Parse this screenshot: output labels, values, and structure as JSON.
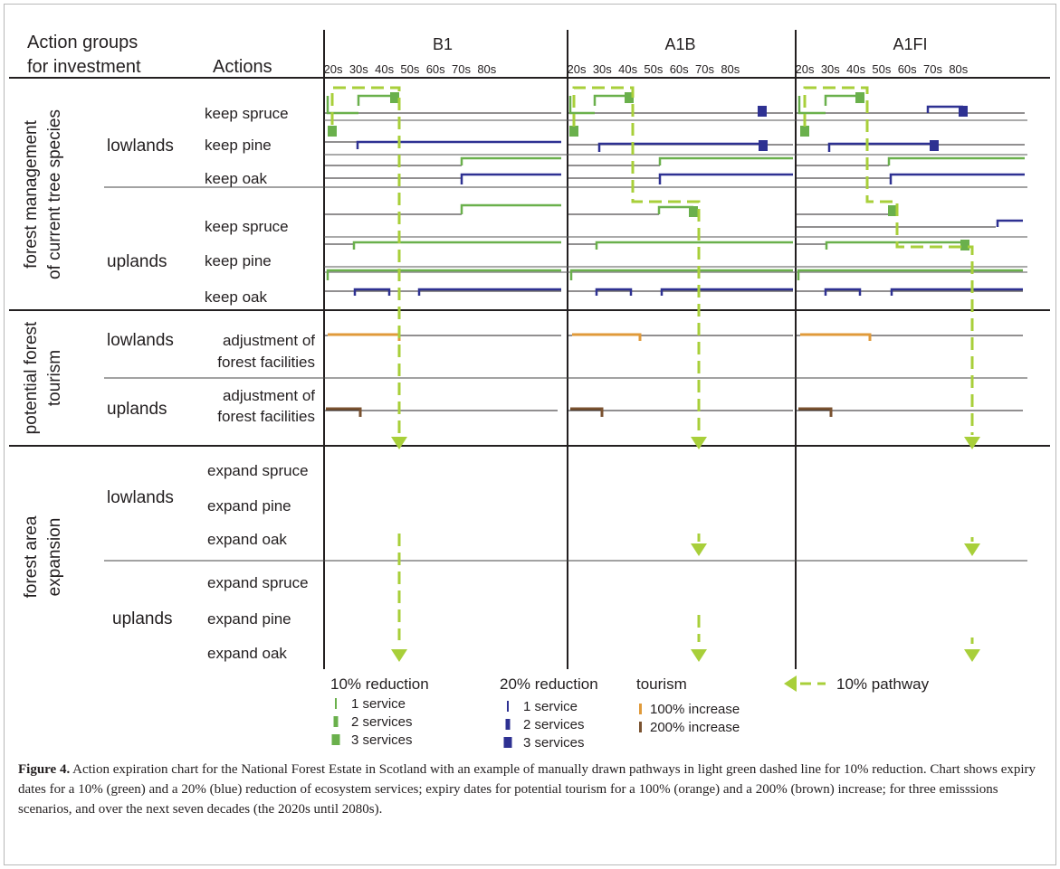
{
  "headers": {
    "action_groups": "Action groups",
    "for_investment": "for investment",
    "actions": "Actions"
  },
  "scenarios": [
    "B1",
    "A1B",
    "A1FI"
  ],
  "decades": [
    "20s",
    "30s",
    "40s",
    "50s",
    "60s",
    "70s",
    "80s"
  ],
  "groups": {
    "fm": [
      "forest management",
      "of current tree species"
    ],
    "tourism": [
      "potential forest",
      "tourism"
    ],
    "expansion": [
      "forest area",
      "expansion"
    ]
  },
  "subgroups": {
    "lowlands": "lowlands",
    "uplands": "uplands"
  },
  "actions": {
    "keep_spruce": "keep spruce",
    "keep_pine": "keep pine",
    "keep_oak": "keep oak",
    "adjustment_line1": "adjustment of",
    "adjustment_line2": "forest facilities",
    "expand_spruce": "expand spruce",
    "expand_pine": "expand pine",
    "expand_oak": "expand oak"
  },
  "legend": {
    "reduction10": {
      "title": "10% reduction",
      "items": [
        "1 service",
        "2 services",
        "3 services"
      ]
    },
    "reduction20": {
      "title": "20% reduction",
      "items": [
        "1 service",
        "2 services",
        "3 services"
      ]
    },
    "tourism": {
      "title": "tourism",
      "items": [
        "100% increase",
        "200% increase"
      ]
    },
    "pathway": "10% pathway"
  },
  "colors": {
    "green": "#6ab04c",
    "blue": "#2e3192",
    "orange": "#e09a3a",
    "brown": "#7a5230",
    "pathway": "#a8cf3a",
    "line": "#231f20"
  },
  "caption": {
    "label": "Figure 4.",
    "text": " Action expiration chart for the National Forest Estate in Scotland with an example of manually drawn pathways in light green dashed line for 10% reduction. Chart shows expiry dates for a 10% (green) and a 20% (blue) reduction of ecosystem services; expiry dates for potential tourism for a 100% (orange) and a 200% (brown) increase; for three emisssions scenarios, and over the next seven decades (the 2020s until 2080s)."
  }
}
